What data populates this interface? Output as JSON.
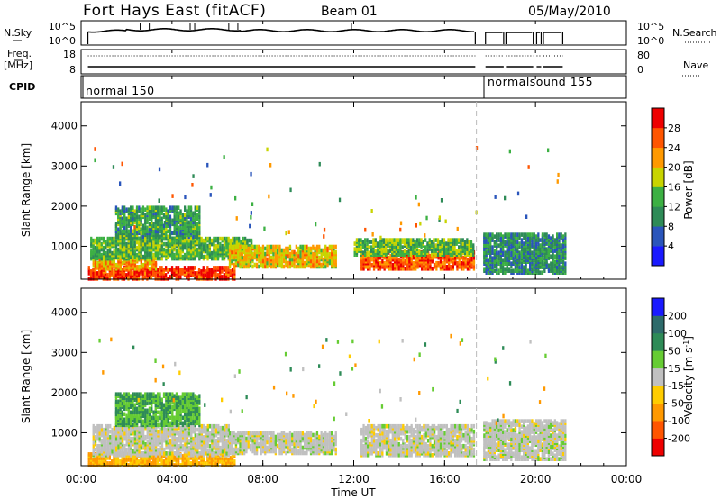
{
  "header": {
    "station": "Fort Hays East (fitACF)",
    "beam": "Beam 01",
    "date": "05/May/2010"
  },
  "strip_labels": {
    "nsky": "N.Sky",
    "nsky_ticks": [
      "10^5",
      "10^0"
    ],
    "freq": "Freq.",
    "freq_unit": "[MHz]",
    "freq_ticks": [
      "18",
      "8"
    ],
    "cpid": "CPID",
    "nsearch": "N.Search",
    "nsearch_ticks": [
      "10^5",
      "10^0"
    ],
    "nave": "Nave",
    "nave_ticks": [
      "80",
      "0"
    ]
  },
  "cpid_segments": [
    {
      "label": "normal 150",
      "start_hour": 0
    },
    {
      "label": "normalsound 155",
      "start_hour": 17.6
    }
  ],
  "x_axis": {
    "label": "Time UT",
    "ticks": [
      "00:00",
      "04:00",
      "08:00",
      "12:00",
      "16:00",
      "20:00",
      "00:00"
    ],
    "range_hours": [
      0,
      24
    ]
  },
  "y_axis": {
    "label": "Slant Range [km]",
    "ticks": [
      "1000",
      "2000",
      "3000",
      "4000"
    ],
    "range": [
      180,
      4600
    ]
  },
  "power_scale": {
    "label": "Power [dB]",
    "ticks": [
      "4",
      "8",
      "12",
      "16",
      "20",
      "24",
      "28"
    ],
    "colors": [
      "#1a1aff",
      "#2a55bb",
      "#2e8b57",
      "#3cb043",
      "#c8d400",
      "#ff9900",
      "#ff5500",
      "#ee0000"
    ]
  },
  "velocity_scale": {
    "label": "Velocity [m s",
    "label_sup": "-1",
    "label_end": "]",
    "ticks": [
      "200",
      "100",
      "50",
      "15",
      "-15",
      "-50",
      "-100",
      "-200"
    ],
    "colors": [
      "#1a1aff",
      "#2e6b6b",
      "#2e8b57",
      "#66cc33",
      "#c0c0c0",
      "#ffcc00",
      "#ff9900",
      "#ff5500",
      "#ee0000"
    ]
  },
  "chart_data": {
    "type": "heatmap",
    "title": "Fort Hays East (fitACF)",
    "xlabel": "Time UT",
    "ylabel": "Slant Range [km]",
    "xlim_hours": [
      0,
      24
    ],
    "ylim_km": [
      180,
      4600
    ],
    "gap_hours": [
      17.4,
      17.65
    ],
    "power_echo_regions": [
      {
        "t0": 0.3,
        "t1": 6.8,
        "r0": 200,
        "r1": 500,
        "power_db": 28
      },
      {
        "t0": 0.5,
        "t1": 3.3,
        "r0": 450,
        "r1": 750,
        "power_db": 22
      },
      {
        "t0": 0.4,
        "t1": 7.5,
        "r0": 700,
        "r1": 1200,
        "power_db": 14
      },
      {
        "t0": 1.5,
        "t1": 5.2,
        "r0": 1200,
        "r1": 2000,
        "power_db": 12
      },
      {
        "t0": 6.5,
        "t1": 11.2,
        "r0": 500,
        "r1": 1000,
        "power_db": 20
      },
      {
        "t0": 12.3,
        "t1": 17.3,
        "r0": 450,
        "r1": 900,
        "power_db": 26
      },
      {
        "t0": 12.0,
        "t1": 17.3,
        "r0": 800,
        "r1": 1200,
        "power_db": 14
      },
      {
        "t0": 17.7,
        "t1": 21.3,
        "r0": 350,
        "r1": 1300,
        "power_db": 10
      }
    ],
    "velocity_echo_regions": [
      {
        "t0": 0.3,
        "t1": 6.8,
        "r0": 200,
        "r1": 500,
        "velocity": -50
      },
      {
        "t0": 0.5,
        "t1": 6.5,
        "r0": 450,
        "r1": 1200,
        "velocity": 0
      },
      {
        "t0": 1.5,
        "t1": 5.2,
        "r0": 1200,
        "r1": 2000,
        "velocity": 50
      },
      {
        "t0": 6.5,
        "t1": 11.2,
        "r0": 500,
        "r1": 1000,
        "velocity": 0
      },
      {
        "t0": 12.3,
        "t1": 17.3,
        "r0": 450,
        "r1": 1200,
        "velocity": 0
      },
      {
        "t0": 17.7,
        "t1": 21.3,
        "r0": 350,
        "r1": 1300,
        "velocity": 0
      }
    ]
  }
}
